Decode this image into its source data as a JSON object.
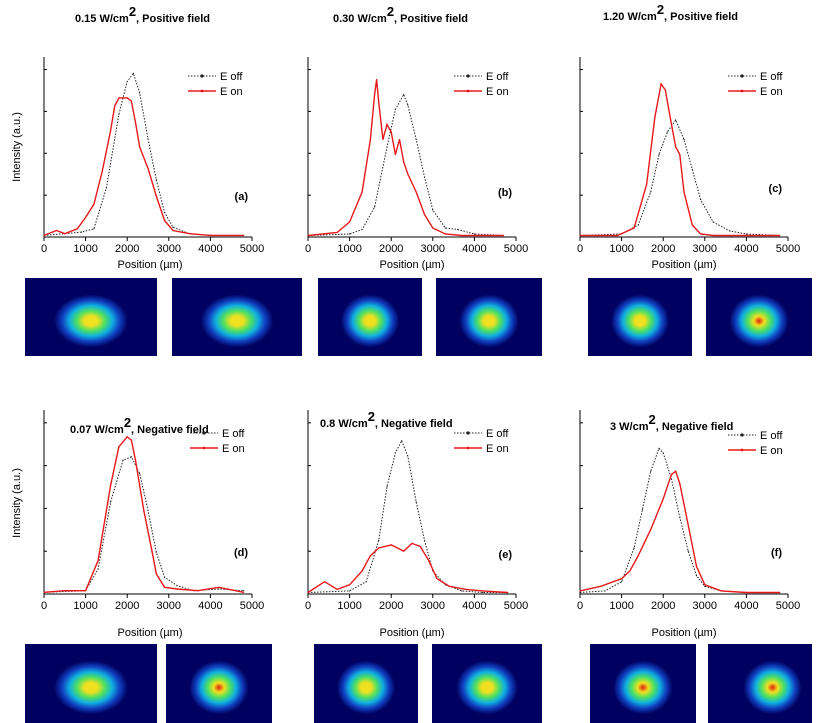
{
  "figure": {
    "ylabel": "Intensity (a.u.)",
    "xlabel": "Position (µm)",
    "legend": [
      "E off",
      "E on"
    ],
    "colors": {
      "e_off": "#222222",
      "e_on": "#e8181a"
    }
  },
  "chart_data": [
    {
      "type": "line",
      "panel": "(a)",
      "title": "0.15 W/cm",
      "exponent": "2",
      "field": ", Positive field",
      "xlim": [
        0,
        5000
      ],
      "xticks": [
        0,
        1000,
        2000,
        3000,
        4000,
        5000
      ],
      "ylim": [
        0,
        1.1
      ],
      "series": [
        {
          "name": "E off",
          "x": [
            0,
            500,
            900,
            1200,
            1500,
            1800,
            2000,
            2150,
            2300,
            2500,
            2700,
            2900,
            3100,
            3500,
            4000,
            4800
          ],
          "y": [
            0.01,
            0.02,
            0.03,
            0.05,
            0.3,
            0.75,
            0.95,
            1.0,
            0.88,
            0.6,
            0.35,
            0.15,
            0.06,
            0.02,
            0.01,
            0.01
          ]
        },
        {
          "name": "E on",
          "x": [
            0,
            300,
            500,
            800,
            1000,
            1200,
            1400,
            1600,
            1700,
            1800,
            2000,
            2100,
            2200,
            2300,
            2500,
            2700,
            2900,
            3100,
            3500,
            4000,
            4800
          ],
          "y": [
            0.01,
            0.04,
            0.02,
            0.05,
            0.12,
            0.2,
            0.4,
            0.65,
            0.8,
            0.85,
            0.85,
            0.83,
            0.7,
            0.55,
            0.42,
            0.25,
            0.1,
            0.04,
            0.02,
            0.01,
            0.01
          ]
        }
      ],
      "images": [
        "off",
        "on"
      ]
    },
    {
      "type": "line",
      "panel": "(b)",
      "title": "0.30 W/cm",
      "exponent": "2",
      "field": ", Positive field",
      "xlim": [
        0,
        5000
      ],
      "xticks": [
        0,
        1000,
        2000,
        3000,
        4000,
        5000
      ],
      "ylim": [
        0,
        1.2
      ],
      "series": [
        {
          "name": "E off",
          "x": [
            0,
            1000,
            1300,
            1600,
            1900,
            2100,
            2300,
            2400,
            2600,
            2800,
            3000,
            3300,
            3600,
            4000,
            4700
          ],
          "y": [
            0.01,
            0.02,
            0.05,
            0.2,
            0.6,
            0.85,
            0.95,
            0.88,
            0.65,
            0.4,
            0.18,
            0.06,
            0.05,
            0.02,
            0.01
          ]
        },
        {
          "name": "E on",
          "x": [
            0,
            700,
            1000,
            1300,
            1500,
            1600,
            1650,
            1700,
            1800,
            1900,
            2000,
            2100,
            2200,
            2300,
            2400,
            2600,
            2800,
            3000,
            3300,
            3700,
            4700
          ],
          "y": [
            0.01,
            0.03,
            0.1,
            0.3,
            0.65,
            0.95,
            1.05,
            0.9,
            0.65,
            0.75,
            0.7,
            0.55,
            0.65,
            0.5,
            0.42,
            0.3,
            0.15,
            0.06,
            0.02,
            0.01,
            0.01
          ]
        }
      ],
      "images": [
        "off",
        "on"
      ]
    },
    {
      "type": "line",
      "panel": "(c)",
      "title": "1.20 W/cm",
      "exponent": "2",
      "field": ", Positive field",
      "xlim": [
        0,
        5000
      ],
      "xticks": [
        0,
        1000,
        2000,
        3000,
        4000,
        5000
      ],
      "ylim": [
        0,
        1.2
      ],
      "series": [
        {
          "name": "E off",
          "x": [
            0,
            1000,
            1400,
            1700,
            1900,
            2100,
            2300,
            2500,
            2700,
            2900,
            3200,
            3600,
            4000,
            4800
          ],
          "y": [
            0.01,
            0.02,
            0.08,
            0.3,
            0.55,
            0.7,
            0.78,
            0.65,
            0.45,
            0.25,
            0.1,
            0.04,
            0.02,
            0.01
          ]
        },
        {
          "name": "E on",
          "x": [
            0,
            900,
            1300,
            1600,
            1800,
            1950,
            2050,
            2200,
            2300,
            2400,
            2500,
            2700,
            2900,
            3200,
            4800
          ],
          "y": [
            0.01,
            0.01,
            0.06,
            0.35,
            0.8,
            1.02,
            0.98,
            0.75,
            0.6,
            0.55,
            0.3,
            0.08,
            0.02,
            0.01,
            0.01
          ]
        }
      ],
      "images": [
        "off",
        "on"
      ]
    },
    {
      "type": "line",
      "panel": "(d)",
      "title": "0.07 W/cm",
      "exponent": "2",
      "field": ", Negative field",
      "xlim": [
        0,
        5000
      ],
      "xticks": [
        0,
        1000,
        2000,
        3000,
        4000,
        5000
      ],
      "ylim": [
        0,
        1.1
      ],
      "series": [
        {
          "name": "E off",
          "x": [
            0,
            1000,
            1300,
            1600,
            1900,
            2100,
            2300,
            2500,
            2700,
            2900,
            3200,
            3600,
            4200,
            4800
          ],
          "y": [
            0.01,
            0.02,
            0.15,
            0.55,
            0.8,
            0.82,
            0.72,
            0.5,
            0.25,
            0.1,
            0.05,
            0.02,
            0.03,
            0.02
          ]
        },
        {
          "name": "E on",
          "x": [
            0,
            500,
            1000,
            1300,
            1600,
            1800,
            2000,
            2100,
            2200,
            2400,
            2600,
            2700,
            2900,
            3200,
            3700,
            4200,
            4800
          ],
          "y": [
            0.01,
            0.02,
            0.02,
            0.2,
            0.65,
            0.88,
            0.94,
            0.92,
            0.8,
            0.5,
            0.25,
            0.12,
            0.04,
            0.03,
            0.02,
            0.04,
            0.01
          ]
        }
      ],
      "images": [
        "off",
        "on"
      ]
    },
    {
      "type": "line",
      "panel": "(e)",
      "title": "0.8 W/cm",
      "exponent": "2",
      "field": ", Negative field",
      "xlim": [
        0,
        5000
      ],
      "xticks": [
        0,
        1000,
        2000,
        3000,
        4000,
        5000
      ],
      "ylim": [
        0,
        1.2
      ],
      "series": [
        {
          "name": "E off",
          "x": [
            0,
            1000,
            1400,
            1700,
            1900,
            2100,
            2250,
            2400,
            2600,
            2800,
            3000,
            3300,
            3700,
            4200,
            4800
          ],
          "y": [
            0.01,
            0.02,
            0.08,
            0.35,
            0.7,
            0.92,
            1.0,
            0.9,
            0.6,
            0.35,
            0.15,
            0.06,
            0.02,
            0.01,
            0.01
          ]
        },
        {
          "name": "E on",
          "x": [
            0,
            400,
            700,
            1000,
            1300,
            1500,
            1700,
            2000,
            2300,
            2500,
            2700,
            2900,
            3100,
            3400,
            3800,
            4200,
            4800
          ],
          "y": [
            0.01,
            0.08,
            0.03,
            0.06,
            0.15,
            0.25,
            0.3,
            0.32,
            0.28,
            0.33,
            0.31,
            0.22,
            0.1,
            0.05,
            0.03,
            0.02,
            0.01
          ]
        }
      ],
      "images": [
        "off",
        "on"
      ]
    },
    {
      "type": "line",
      "panel": "(f)",
      "title": "3 W/cm",
      "exponent": "2",
      "field": ", Negative field",
      "xlim": [
        0,
        5000
      ],
      "xticks": [
        0,
        1000,
        2000,
        3000,
        4000,
        5000
      ],
      "ylim": [
        0,
        1.2
      ],
      "series": [
        {
          "name": "E off",
          "x": [
            0,
            600,
            1000,
            1300,
            1500,
            1700,
            1900,
            2000,
            2200,
            2400,
            2600,
            2800,
            3000,
            3400,
            4000,
            4800
          ],
          "y": [
            0.01,
            0.02,
            0.08,
            0.3,
            0.55,
            0.8,
            0.95,
            0.92,
            0.75,
            0.5,
            0.28,
            0.12,
            0.05,
            0.02,
            0.01,
            0.01
          ]
        },
        {
          "name": "E on",
          "x": [
            0,
            500,
            1000,
            1200,
            1400,
            1700,
            2000,
            2200,
            2300,
            2400,
            2600,
            2800,
            3000,
            3400,
            4000,
            4800
          ],
          "y": [
            0.02,
            0.05,
            0.1,
            0.15,
            0.25,
            0.42,
            0.62,
            0.78,
            0.8,
            0.72,
            0.45,
            0.18,
            0.06,
            0.02,
            0.01,
            0.01
          ]
        }
      ],
      "images": [
        "off",
        "on"
      ]
    }
  ]
}
